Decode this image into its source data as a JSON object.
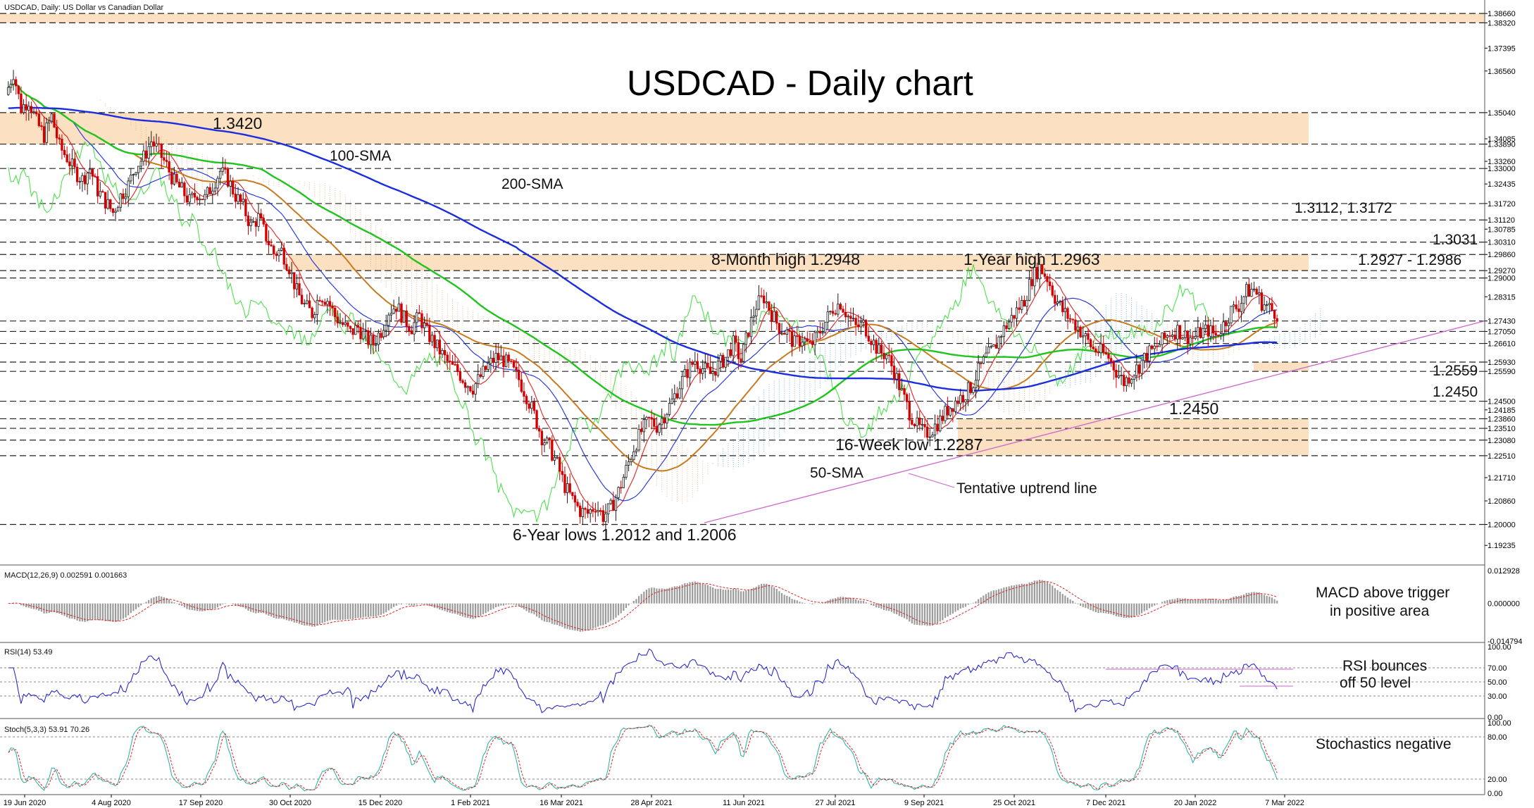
{
  "header": {
    "symbol_label": "USDCAD, Daily:  US Dollar vs Canadian Dollar",
    "title": "USDCAD - Daily chart"
  },
  "colors": {
    "price_up": "#1a1a1a",
    "price_down": "#d40000",
    "sma200": "#1a2ee0",
    "sma100": "#1fc41f",
    "sma50": "#c87a1e",
    "kijun": "#1a2ee0",
    "tenkan": "#e02020",
    "chikou": "#3ee03e",
    "cloud_blue": "#5aa0e0",
    "cloud_orange": "#e8a868",
    "zone_fill": "#fbe0c2",
    "trendline": "#cc66cc",
    "ann_blue": "#0a1ee6",
    "ann_red": "#e00000",
    "ann_green": "#18c418",
    "ann_orange": "#e0a050",
    "ann_violet": "#c070d0",
    "rsi_line": "#1a1acc",
    "macd_hist": "#9a9a9a",
    "macd_signal": "#e02020",
    "stoch_main": "#20b0a0",
    "stoch_signal": "#e02020",
    "grid_dash": "#222222"
  },
  "chart_data": [
    {
      "type": "candlestick",
      "title": "USDCAD - Daily chart",
      "ylim": [
        1.1852,
        1.3905
      ],
      "y_ticks": [
        "1.38660",
        "1.38320",
        "1.37395",
        "1.36560",
        "1.35040",
        "1.34085",
        "1.33890",
        "1.33260",
        "1.33000",
        "1.32435",
        "1.31720",
        "1.31120",
        "1.30785",
        "1.30310",
        "1.29860",
        "1.29270",
        "1.29000",
        "1.28315",
        "1.27430",
        "1.27050",
        "1.26610",
        "1.25930",
        "1.25590",
        "1.24500",
        "1.24185",
        "1.23860",
        "1.23510",
        "1.23080",
        "1.22510",
        "1.21710",
        "1.20860",
        "1.20000",
        "1.19235"
      ],
      "x_dates": [
        "19 Jun 2020",
        "4 Aug 2020",
        "17 Sep 2020",
        "30 Oct 2020",
        "15 Dec 2020",
        "1 Feb 2021",
        "16 Mar 2021",
        "28 Apr 2021",
        "11 Jun 2021",
        "27 Jul 2021",
        "9 Sep 2021",
        "25 Oct 2021",
        "7 Dec 2021",
        "20 Jan 2022",
        "7 Mar 2022"
      ],
      "close_series": [
        1.357,
        1.365,
        1.352,
        1.355,
        1.347,
        1.342,
        1.349,
        1.338,
        1.334,
        1.329,
        1.326,
        1.33,
        1.322,
        1.318,
        1.314,
        1.32,
        1.324,
        1.331,
        1.334,
        1.34,
        1.336,
        1.331,
        1.325,
        1.322,
        1.318,
        1.321,
        1.319,
        1.324,
        1.329,
        1.326,
        1.32,
        1.316,
        1.309,
        1.312,
        1.305,
        1.299,
        1.3,
        1.294,
        1.285,
        1.28,
        1.277,
        1.284,
        1.282,
        1.276,
        1.273,
        1.27,
        1.272,
        1.268,
        1.266,
        1.271,
        1.278,
        1.28,
        1.275,
        1.272,
        1.276,
        1.27,
        1.266,
        1.262,
        1.258,
        1.256,
        1.252,
        1.25,
        1.254,
        1.258,
        1.261,
        1.26,
        1.257,
        1.253,
        1.247,
        1.24,
        1.232,
        1.228,
        1.222,
        1.214,
        1.209,
        1.205,
        1.204,
        1.207,
        1.203,
        1.206,
        1.212,
        1.22,
        1.228,
        1.234,
        1.238,
        1.236,
        1.24,
        1.245,
        1.251,
        1.256,
        1.26,
        1.257,
        1.255,
        1.258,
        1.261,
        1.266,
        1.26,
        1.271,
        1.28,
        1.283,
        1.277,
        1.272,
        1.27,
        1.266,
        1.268,
        1.265,
        1.269,
        1.274,
        1.279,
        1.281,
        1.276,
        1.272,
        1.273,
        1.268,
        1.263,
        1.262,
        1.256,
        1.248,
        1.241,
        1.236,
        1.233,
        1.235,
        1.238,
        1.242,
        1.245,
        1.247,
        1.25,
        1.256,
        1.261,
        1.264,
        1.27,
        1.274,
        1.278,
        1.282,
        1.29,
        1.294,
        1.29,
        1.283,
        1.278,
        1.275,
        1.272,
        1.268,
        1.264,
        1.263,
        1.261,
        1.256,
        1.252,
        1.255,
        1.258,
        1.262,
        1.264,
        1.267,
        1.27,
        1.271,
        1.269,
        1.268,
        1.27,
        1.271,
        1.269,
        1.273,
        1.278,
        1.28,
        1.285,
        1.286,
        1.281,
        1.279,
        1.277
      ],
      "annotations": {
        "sma100": "100-SMA",
        "sma200": "200-SMA",
        "sma50": "50-SMA",
        "high_1_3420": "1.3420",
        "eight_month_high": "8-Month high 1.2948",
        "one_year_high": "1-Year high 1.2963",
        "resist_1": "1.3112, 1.3172",
        "resist_2": "1.3031",
        "resist_3": "1.2927 - 1.2986",
        "support_1": "1.2559",
        "support_2": "1.2450",
        "low_1_2450": "1.2450",
        "sixteen_week_low": "16-Week low 1.2287",
        "trendline_label": "Tentative uptrend line",
        "six_year_lows": "6-Year lows 1.2012 and 1.2006"
      }
    },
    {
      "type": "macd",
      "label": "MACD(12,26,9) 0.002591 0.001663",
      "ylim": [
        -0.014794,
        0.012928
      ],
      "y_ticks": [
        "0.012928",
        "0.000000",
        "-0.014794"
      ],
      "note": [
        "MACD above trigger",
        "in positive area"
      ]
    },
    {
      "type": "rsi",
      "label": "RSI(14) 53.49",
      "ylim": [
        0,
        100
      ],
      "y_ticks": [
        "100.00",
        "70.00",
        "50.00",
        "30.00",
        "0.00"
      ],
      "note": [
        "RSI bounces",
        "off 50 level"
      ]
    },
    {
      "type": "stochastic",
      "label": "Stoch(5,3,3) 53.91 70.26",
      "ylim": [
        0,
        100
      ],
      "y_ticks": [
        "100.00",
        "80.00",
        "20.00",
        "0.00"
      ],
      "note": [
        "Stochastics negative"
      ]
    }
  ]
}
